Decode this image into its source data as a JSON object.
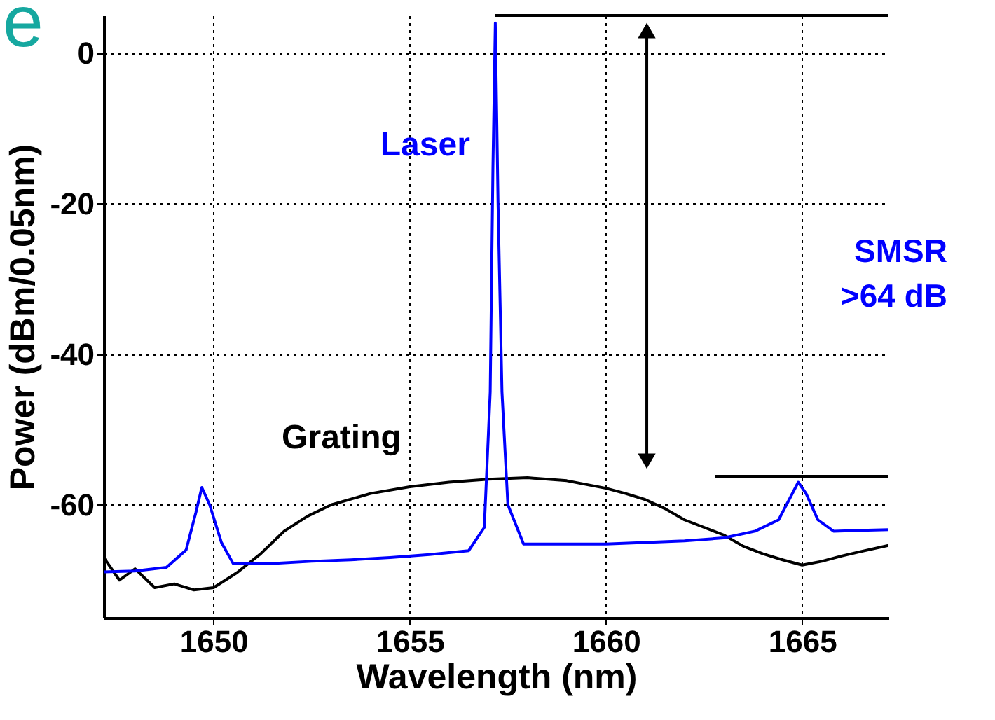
{
  "chart_data": {
    "type": "line",
    "xlabel": "Wavelength (nm)",
    "ylabel": "Power (dBm/0.05nm)",
    "xlim": [
      1647.2,
      1667.2
    ],
    "xticks": [
      1650,
      1655,
      1660,
      1665
    ],
    "ylim": [
      -75,
      5
    ],
    "yticks": [
      0,
      -20,
      -40,
      -60
    ],
    "grid": true,
    "annotations": [
      "e",
      "SMSR\n>64 dB"
    ],
    "ref_lines": [
      {
        "axis": "y",
        "value": 5
      },
      {
        "axis": "y",
        "value": -56.2
      }
    ],
    "series": [
      {
        "name": "Grating",
        "color": "#000000",
        "x": [
          1647.2,
          1647.6,
          1648,
          1648.5,
          1649,
          1649.5,
          1650,
          1650.6,
          1651.2,
          1651.8,
          1652.4,
          1653,
          1654,
          1655,
          1656,
          1657,
          1658,
          1659,
          1660,
          1660.5,
          1661,
          1661.5,
          1662,
          1662.5,
          1663,
          1663.5,
          1664,
          1664.5,
          1665,
          1665.5,
          1666,
          1666.5,
          1667.2
        ],
        "values": [
          -67,
          -70,
          -68.5,
          -71,
          -70.5,
          -71.3,
          -71,
          -69,
          -66.5,
          -63.5,
          -61.5,
          -60,
          -58.5,
          -57.6,
          -57,
          -56.6,
          -56.4,
          -56.8,
          -57.8,
          -58.5,
          -59.3,
          -60.5,
          -62,
          -63,
          -64,
          -65.5,
          -66.5,
          -67.3,
          -68,
          -67.5,
          -66.8,
          -66.2,
          -65.4
        ]
      },
      {
        "name": "Laser",
        "color": "#0000ff",
        "x": [
          1647.2,
          1648,
          1648.8,
          1649.3,
          1649.55,
          1649.7,
          1649.9,
          1650.2,
          1650.5,
          1651.5,
          1652.5,
          1653.5,
          1654.5,
          1655.5,
          1656.5,
          1656.9,
          1657.05,
          1657.12,
          1657.18,
          1657.25,
          1657.35,
          1657.5,
          1657.9,
          1659,
          1660,
          1661,
          1662,
          1663,
          1663.8,
          1664.4,
          1664.7,
          1664.9,
          1665.1,
          1665.4,
          1665.8,
          1666.5,
          1667.2
        ],
        "values": [
          -68.9,
          -68.8,
          -68.3,
          -66,
          -61,
          -57.7,
          -60,
          -65,
          -67.8,
          -67.8,
          -67.5,
          -67.3,
          -67,
          -66.6,
          -66.1,
          -63,
          -45,
          -15,
          4,
          -20,
          -45,
          -60,
          -65.2,
          -65.2,
          -65.2,
          -65,
          -64.8,
          -64.4,
          -63.5,
          -62,
          -59,
          -57,
          -58.5,
          -62,
          -63.5,
          -63.4,
          -63.3
        ]
      }
    ]
  }
}
